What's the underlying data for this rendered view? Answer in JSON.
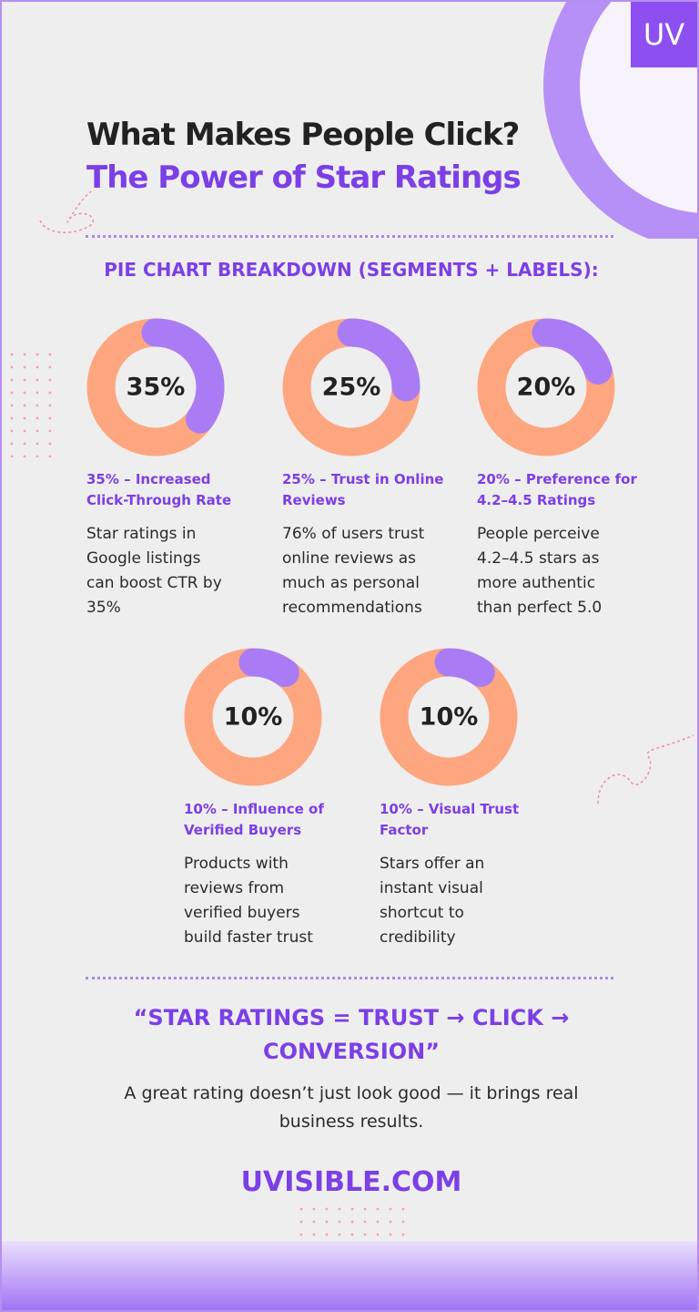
{
  "logo": "UV",
  "header": {
    "title": "What Makes People Click?",
    "subtitle": "The Power of Star Ratings"
  },
  "section_title": "PIE CHART BREAKDOWN (SEGMENTS + LABELS):",
  "chart_data": [
    {
      "type": "donut",
      "values": [
        35
      ],
      "value_labels": [
        "35%"
      ],
      "color": "#a97cf6",
      "track_color": "#fda67f",
      "caption": "35% – Increased Click-Through Rate",
      "description": "Star ratings in Google listings can boost CTR by 35%"
    },
    {
      "type": "donut",
      "values": [
        25
      ],
      "value_labels": [
        "25%"
      ],
      "color": "#a97cf6",
      "track_color": "#fda67f",
      "caption": "25% – Trust in Online Reviews",
      "description": "76% of users trust online reviews as much as personal recommendations"
    },
    {
      "type": "donut",
      "values": [
        20
      ],
      "value_labels": [
        "20%"
      ],
      "color": "#a97cf6",
      "track_color": "#fda67f",
      "caption": "20% – Preference for 4.2–4.5 Ratings",
      "description": "People perceive 4.2–4.5 stars as more authentic than perfect 5.0"
    },
    {
      "type": "donut",
      "values": [
        10
      ],
      "value_labels": [
        "10%"
      ],
      "color": "#a97cf6",
      "track_color": "#fda67f",
      "caption": "10% – Influence of Verified Buyers",
      "description": "Products with reviews from verified buyers build faster trust"
    },
    {
      "type": "donut",
      "values": [
        10
      ],
      "value_labels": [
        "10%"
      ],
      "color": "#a97cf6",
      "track_color": "#fda67f",
      "caption": "10% – Visual Trust Factor",
      "description": "Stars offer an instant visual shortcut to credibility"
    }
  ],
  "quote": "“STAR RATINGS = TRUST → CLICK → CONVERSION”",
  "summary": "A great rating doesn’t just look good — it brings real business results.",
  "website": "UVISIBLE.COM"
}
